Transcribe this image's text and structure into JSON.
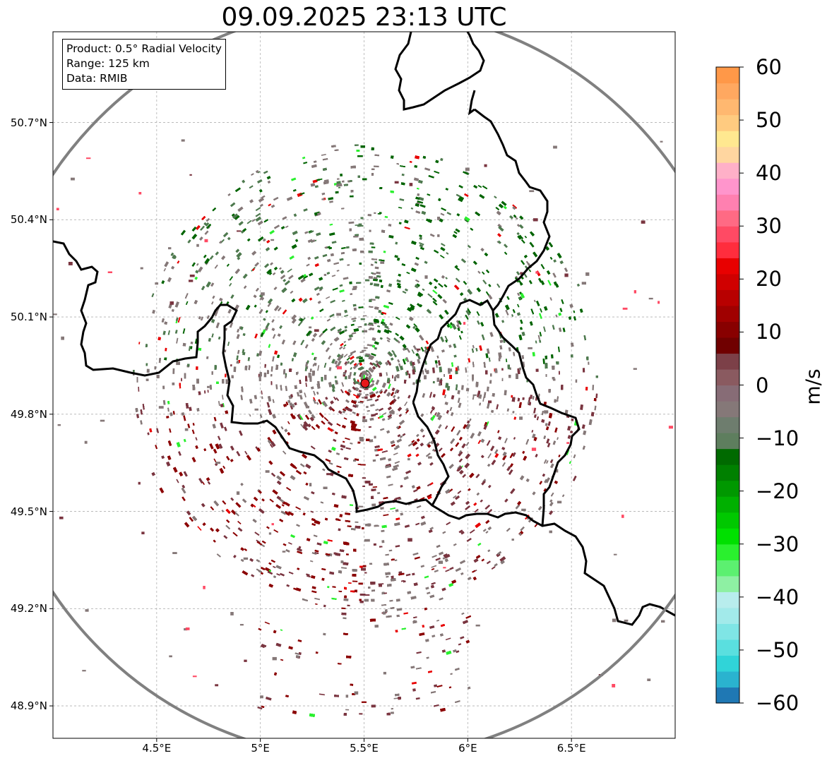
{
  "title": "09.09.2025 23:13 UTC",
  "info_box": {
    "line1": "Product: 0.5° Radial Velocity",
    "line2": "Range: 125 km",
    "line3": "Data: RMIB"
  },
  "map": {
    "lon_range": [
      4.0,
      7.0
    ],
    "lat_range": [
      48.8,
      50.98
    ],
    "radar_site": {
      "lon": 5.505,
      "lat": 49.915
    },
    "range_ring_km": 125,
    "gridlines": true,
    "x_ticks": [
      {
        "value": 4.5,
        "label": "4.5°E"
      },
      {
        "value": 5.0,
        "label": "5°E"
      },
      {
        "value": 5.5,
        "label": "5.5°E"
      },
      {
        "value": 6.0,
        "label": "6°E"
      },
      {
        "value": 6.5,
        "label": "6.5°E"
      }
    ],
    "y_ticks": [
      {
        "value": 50.7,
        "label": "50.7°N"
      },
      {
        "value": 50.4,
        "label": "50.4°N"
      },
      {
        "value": 50.1,
        "label": "50.1°N"
      },
      {
        "value": 49.8,
        "label": "49.8°N"
      },
      {
        "value": 49.5,
        "label": "49.5°N"
      },
      {
        "value": 49.2,
        "label": "49.2°N"
      },
      {
        "value": 48.9,
        "label": "48.9°N"
      }
    ],
    "colors": {
      "border": "#000000",
      "range_ring": "#808080",
      "radar_site": "#e8181a",
      "grid": "#b0b0b0"
    }
  },
  "colorbar": {
    "label": "m/s",
    "range": [
      -60,
      60
    ],
    "ticks": [
      {
        "value": 60,
        "label": "60"
      },
      {
        "value": 50,
        "label": "50"
      },
      {
        "value": 40,
        "label": "40"
      },
      {
        "value": 30,
        "label": "30"
      },
      {
        "value": 20,
        "label": "20"
      },
      {
        "value": 10,
        "label": "10"
      },
      {
        "value": 0,
        "label": "0"
      },
      {
        "value": -10,
        "label": "−10"
      },
      {
        "value": -20,
        "label": "−20"
      },
      {
        "value": -30,
        "label": "−30"
      },
      {
        "value": -40,
        "label": "−40"
      },
      {
        "value": -50,
        "label": "−50"
      },
      {
        "value": -60,
        "label": "−60"
      }
    ],
    "colors": [
      "#1f78b4",
      "#2ab3cf",
      "#30d4d8",
      "#5adfdf",
      "#7fe5e5",
      "#a2eaea",
      "#b8eded",
      "#8ef0a3",
      "#5cf070",
      "#2af02e",
      "#00e000",
      "#00c800",
      "#00b000",
      "#009800",
      "#008000",
      "#006a00",
      "#5e7e5e",
      "#6e7d6e",
      "#857878",
      "#876c76",
      "#8a5a60",
      "#7c4048",
      "#700000",
      "#880000",
      "#a00000",
      "#b80000",
      "#d00000",
      "#e80000",
      "#ff2d3d",
      "#ff4a64",
      "#ff6a84",
      "#ff80b0",
      "#ff95cc",
      "#ffb0c8",
      "#ffd6a0",
      "#ffe890",
      "#ffcb80",
      "#ffb870",
      "#ffa860",
      "#ff9848"
    ]
  },
  "echo_field": {
    "description_colors": {
      "approaching_strong": "#006400",
      "approaching": "#4f7a4f",
      "near_zero": "#857878",
      "receding": "#7a3540",
      "receding_strong": "#8b0000"
    }
  }
}
